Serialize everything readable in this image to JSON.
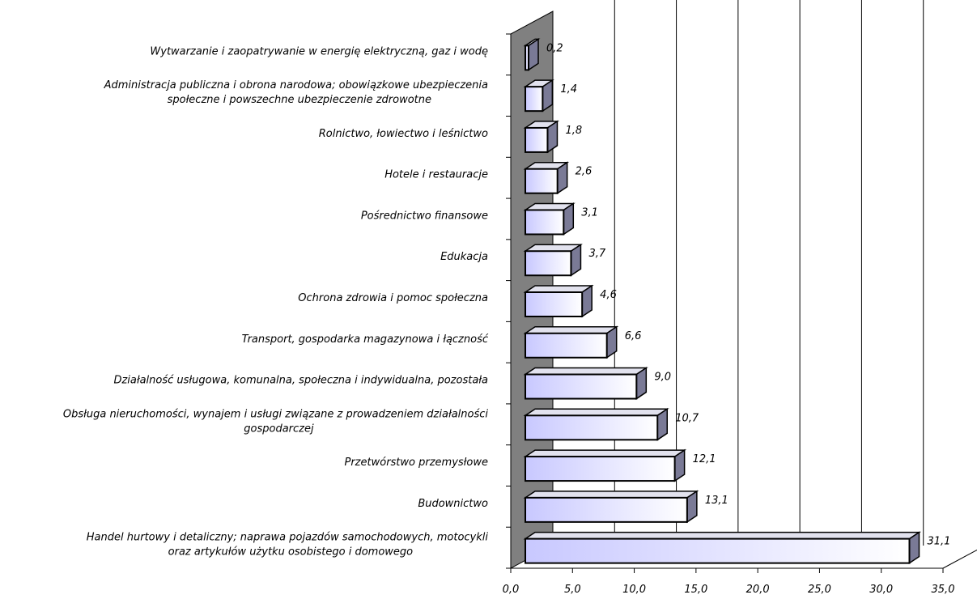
{
  "chart_data": {
    "type": "bar",
    "orientation": "horizontal",
    "style": "3d",
    "categories": [
      [
        "Wytwarzanie i zaopatrywanie w energię elektryczną, gaz i wodę"
      ],
      [
        "Administracja publiczna i obrona narodowa; obowiązkowe ubezpieczenia",
        "społeczne i powszechne ubezpieczenie zdrowotne"
      ],
      [
        "Rolnictwo, łowiectwo i leśnictwo"
      ],
      [
        "Hotele i restauracje"
      ],
      [
        "Pośrednictwo finansowe"
      ],
      [
        "Edukacja"
      ],
      [
        "Ochrona zdrowia i pomoc społeczna"
      ],
      [
        "Transport, gospodarka magazynowa i łączność"
      ],
      [
        "Działalność usługowa, komunalna, społeczna i indywidualna, pozostała"
      ],
      [
        "Obsługa nieruchomości, wynajem i usługi związane z prowadzeniem działalności",
        "gospodarczej"
      ],
      [
        "Przetwórstwo przemysłowe"
      ],
      [
        "Budownictwo"
      ],
      [
        "Handel hurtowy i detaliczny; naprawa pojazdów samochodowych, motocykli",
        "oraz artykułów użytku osobistego i domowego"
      ]
    ],
    "values": [
      0.2,
      1.4,
      1.8,
      2.6,
      3.1,
      3.7,
      4.6,
      6.6,
      9.0,
      10.7,
      12.1,
      13.1,
      31.1
    ],
    "value_labels": [
      "0,2",
      "1,4",
      "1,8",
      "2,6",
      "3,1",
      "3,7",
      "4,6",
      "6,6",
      "9,0",
      "10,7",
      "12,1",
      "13,1",
      "31,1"
    ],
    "xlim": [
      0,
      35
    ],
    "xticks": [
      0,
      5,
      10,
      15,
      20,
      25,
      30,
      35
    ],
    "xtick_labels": [
      "0,0",
      "5,0",
      "10,0",
      "15,0",
      "20,0",
      "25,0",
      "30,0",
      "35,0"
    ],
    "grid": true,
    "legend": "none",
    "title": "",
    "xlabel": "",
    "ylabel": "",
    "colors": {
      "bar_light": "#ffffff",
      "bar_dark": "#c8c8ff",
      "bar_side": "#7a7a96",
      "bar_top": "#e2e2ee",
      "back_wall": "#808080",
      "outline": "#000000",
      "gridline": "#000000"
    }
  }
}
